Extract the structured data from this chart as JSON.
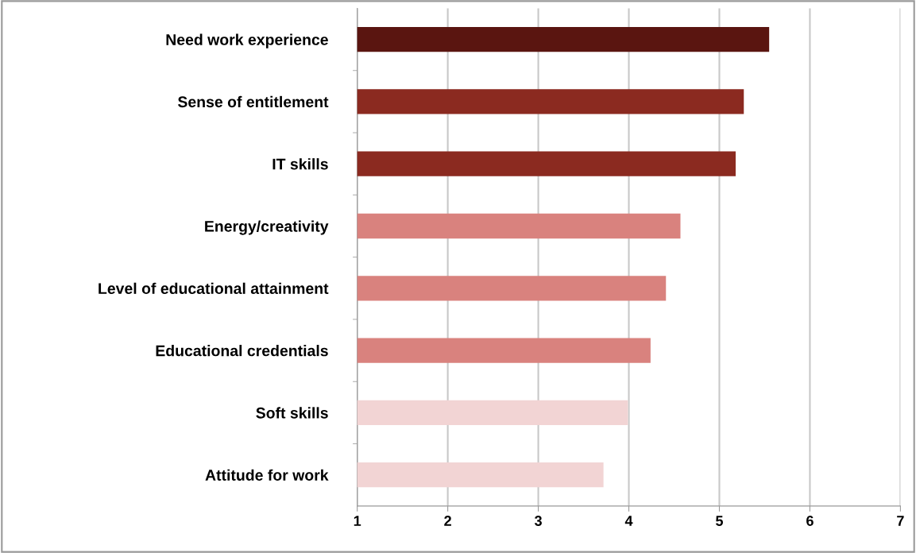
{
  "chart_data": {
    "type": "bar",
    "orientation": "horizontal",
    "categories": [
      "Need work experience",
      "Sense of entitlement",
      "IT skills",
      "Energy/creativity",
      "Level of educational attainment",
      "Educational credentials",
      "Soft skills",
      "Attitude for work"
    ],
    "values": [
      5.55,
      5.27,
      5.18,
      4.57,
      4.41,
      4.24,
      3.99,
      3.72
    ],
    "colors": [
      "#5a1510",
      "#8b2a20",
      "#8b2a20",
      "#d9827e",
      "#d9827e",
      "#d9827e",
      "#f2d4d4",
      "#f2d4d4"
    ],
    "xlim": [
      1,
      7
    ],
    "xticks": [
      1,
      2,
      3,
      4,
      5,
      6,
      7
    ],
    "grid": "x"
  }
}
